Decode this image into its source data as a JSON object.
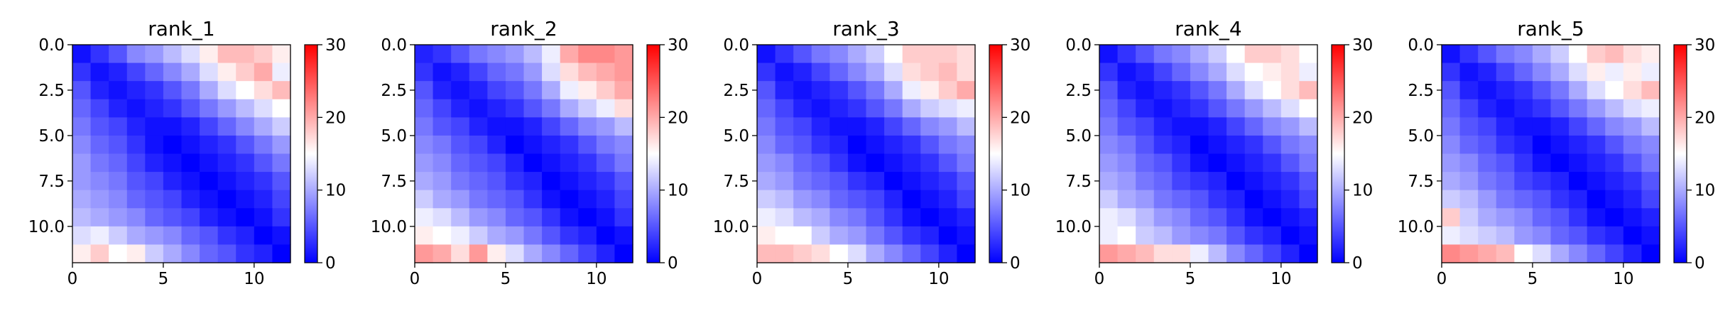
{
  "chart_data": [
    {
      "type": "heatmap",
      "title": "rank_1",
      "x_ticks": [
        "0",
        "5",
        "10"
      ],
      "y_ticks": [
        "0.0",
        "2.5",
        "5.0",
        "7.5",
        "10.0"
      ],
      "xlim": [
        0,
        12
      ],
      "ylim": [
        12,
        0
      ],
      "colorbar": {
        "colormap": "bwr",
        "range": [
          0,
          30
        ],
        "ticks": [
          "0",
          "10",
          "20",
          "30"
        ]
      },
      "values": [
        [
          1,
          3,
          5,
          8,
          9,
          11,
          13,
          16,
          19,
          19,
          18,
          16
        ],
        [
          3,
          1,
          2,
          4,
          6,
          8,
          10,
          13,
          16,
          18,
          20,
          14
        ],
        [
          5,
          2,
          1,
          2,
          3,
          5,
          7,
          10,
          13,
          15,
          17,
          19
        ],
        [
          6,
          4,
          2,
          1,
          2,
          3,
          5,
          7,
          9,
          11,
          13,
          15
        ],
        [
          7,
          5,
          4,
          2,
          1,
          1,
          2,
          4,
          6,
          8,
          10,
          12
        ],
        [
          8,
          6,
          5,
          3,
          1,
          0,
          1,
          2,
          3,
          5,
          7,
          9
        ],
        [
          9,
          7,
          6,
          4,
          2,
          1,
          0,
          1,
          2,
          3,
          5,
          7
        ],
        [
          9,
          8,
          7,
          5,
          4,
          2,
          1,
          0,
          1,
          2,
          3,
          5
        ],
        [
          10,
          9,
          8,
          6,
          5,
          4,
          2,
          1,
          0,
          1,
          2,
          4
        ],
        [
          11,
          10,
          9,
          8,
          6,
          5,
          4,
          2,
          1,
          0,
          1,
          3
        ],
        [
          13,
          14,
          12,
          10,
          9,
          8,
          6,
          5,
          3,
          2,
          0,
          1
        ],
        [
          16,
          18,
          15,
          16,
          12,
          10,
          8,
          6,
          5,
          3,
          2,
          0
        ]
      ]
    },
    {
      "type": "heatmap",
      "title": "rank_2",
      "x_ticks": [
        "0",
        "5",
        "10"
      ],
      "y_ticks": [
        "0.0",
        "2.5",
        "5.0",
        "7.5",
        "10.0"
      ],
      "xlim": [
        0,
        12
      ],
      "ylim": [
        12,
        0
      ],
      "colorbar": {
        "colormap": "bwr",
        "range": [
          0,
          30
        ],
        "ticks": [
          "0",
          "10",
          "20",
          "30"
        ]
      },
      "values": [
        [
          2,
          3,
          5,
          7,
          8,
          9,
          11,
          14,
          20,
          22,
          22,
          21
        ],
        [
          3,
          1,
          2,
          4,
          6,
          7,
          9,
          13,
          17,
          19,
          20,
          21
        ],
        [
          5,
          2,
          1,
          2,
          4,
          5,
          7,
          10,
          14,
          16,
          18,
          20
        ],
        [
          6,
          4,
          2,
          1,
          2,
          3,
          5,
          7,
          10,
          12,
          14,
          17
        ],
        [
          7,
          5,
          4,
          2,
          1,
          1,
          2,
          4,
          6,
          8,
          9,
          11
        ],
        [
          8,
          7,
          5,
          4,
          2,
          0,
          1,
          2,
          3,
          5,
          7,
          8
        ],
        [
          9,
          8,
          6,
          5,
          4,
          2,
          0,
          1,
          2,
          3,
          5,
          7
        ],
        [
          10,
          9,
          7,
          6,
          5,
          3,
          2,
          0,
          1,
          2,
          3,
          5
        ],
        [
          12,
          10,
          9,
          7,
          6,
          5,
          3,
          1,
          0,
          1,
          2,
          4
        ],
        [
          14,
          13,
          11,
          9,
          8,
          6,
          5,
          3,
          1,
          0,
          1,
          3
        ],
        [
          16,
          15,
          14,
          12,
          10,
          9,
          7,
          5,
          3,
          2,
          0,
          1
        ],
        [
          21,
          20,
          17,
          21,
          16,
          13,
          10,
          8,
          6,
          4,
          2,
          0
        ]
      ]
    },
    {
      "type": "heatmap",
      "title": "rank_3",
      "x_ticks": [
        "0",
        "5",
        "10"
      ],
      "y_ticks": [
        "0.0",
        "2.5",
        "5.0",
        "7.5",
        "10.0"
      ],
      "xlim": [
        0,
        12
      ],
      "ylim": [
        12,
        0
      ],
      "colorbar": {
        "colormap": "bwr",
        "range": [
          0,
          30
        ],
        "ticks": [
          "0",
          "10",
          "20",
          "30"
        ]
      },
      "values": [
        [
          1,
          3,
          5,
          7,
          8,
          10,
          12,
          15,
          18,
          18,
          18,
          17
        ],
        [
          3,
          1,
          2,
          4,
          6,
          8,
          10,
          13,
          17,
          18,
          19,
          17
        ],
        [
          5,
          2,
          1,
          2,
          3,
          5,
          7,
          10,
          14,
          16,
          18,
          20
        ],
        [
          6,
          4,
          2,
          1,
          2,
          3,
          5,
          7,
          10,
          12,
          13,
          14
        ],
        [
          7,
          5,
          4,
          2,
          1,
          1,
          2,
          4,
          6,
          8,
          9,
          11
        ],
        [
          8,
          6,
          5,
          3,
          2,
          0,
          1,
          2,
          3,
          5,
          7,
          8
        ],
        [
          9,
          8,
          6,
          5,
          3,
          1,
          0,
          1,
          2,
          3,
          5,
          7
        ],
        [
          10,
          9,
          7,
          6,
          5,
          3,
          2,
          0,
          1,
          2,
          3,
          5
        ],
        [
          12,
          11,
          9,
          8,
          6,
          5,
          4,
          2,
          0,
          1,
          2,
          4
        ],
        [
          14,
          13,
          11,
          10,
          8,
          7,
          5,
          3,
          1,
          0,
          1,
          2
        ],
        [
          16,
          15,
          15,
          12,
          10,
          9,
          7,
          5,
          3,
          2,
          0,
          1
        ],
        [
          19,
          19,
          18,
          17,
          15,
          13,
          10,
          8,
          6,
          4,
          2,
          0
        ]
      ]
    },
    {
      "type": "heatmap",
      "title": "rank_4",
      "x_ticks": [
        "0",
        "5",
        "10"
      ],
      "y_ticks": [
        "0.0",
        "2.5",
        "5.0",
        "7.5",
        "10.0"
      ],
      "xlim": [
        0,
        12
      ],
      "ylim": [
        12,
        0
      ],
      "colorbar": {
        "colormap": "bwr",
        "range": [
          0,
          30
        ],
        "ticks": [
          "0",
          "10",
          "20",
          "30"
        ]
      },
      "values": [
        [
          1,
          3,
          5,
          7,
          8,
          10,
          12,
          15,
          18,
          18,
          17,
          15
        ],
        [
          3,
          1,
          2,
          4,
          6,
          8,
          10,
          13,
          15,
          16,
          17,
          14
        ],
        [
          5,
          2,
          1,
          2,
          3,
          5,
          7,
          10,
          13,
          15,
          17,
          19
        ],
        [
          6,
          4,
          2,
          1,
          2,
          3,
          5,
          7,
          9,
          11,
          13,
          15
        ],
        [
          7,
          5,
          4,
          2,
          1,
          1,
          2,
          4,
          6,
          8,
          9,
          11
        ],
        [
          8,
          7,
          5,
          3,
          2,
          0,
          1,
          2,
          3,
          5,
          7,
          8
        ],
        [
          9,
          8,
          6,
          5,
          3,
          1,
          0,
          1,
          2,
          3,
          5,
          7
        ],
        [
          10,
          9,
          7,
          6,
          4,
          3,
          2,
          0,
          1,
          2,
          3,
          5
        ],
        [
          12,
          10,
          9,
          7,
          6,
          5,
          3,
          2,
          0,
          1,
          2,
          4
        ],
        [
          14,
          13,
          11,
          9,
          8,
          6,
          5,
          3,
          1,
          0,
          1,
          2
        ],
        [
          14,
          15,
          12,
          11,
          9,
          8,
          7,
          5,
          3,
          2,
          0,
          1
        ],
        [
          21,
          20,
          19,
          17,
          17,
          14,
          11,
          8,
          6,
          4,
          2,
          0
        ]
      ]
    },
    {
      "type": "heatmap",
      "title": "rank_5",
      "x_ticks": [
        "0",
        "5",
        "10"
      ],
      "y_ticks": [
        "0.0",
        "2.5",
        "5.0",
        "7.5",
        "10.0"
      ],
      "xlim": [
        0,
        12
      ],
      "ylim": [
        12,
        0
      ],
      "colorbar": {
        "colormap": "bwr",
        "range": [
          0,
          30
        ],
        "ticks": [
          "0",
          "10",
          "20",
          "30"
        ]
      },
      "values": [
        [
          1,
          3,
          5,
          7,
          8,
          10,
          12,
          15,
          18,
          19,
          17,
          16
        ],
        [
          3,
          1,
          2,
          4,
          6,
          8,
          10,
          13,
          16,
          14,
          16,
          14
        ],
        [
          5,
          2,
          1,
          2,
          3,
          5,
          7,
          10,
          13,
          15,
          17,
          19
        ],
        [
          6,
          4,
          2,
          1,
          2,
          3,
          5,
          7,
          9,
          11,
          13,
          14
        ],
        [
          7,
          5,
          4,
          2,
          1,
          1,
          2,
          4,
          6,
          8,
          9,
          11
        ],
        [
          8,
          6,
          5,
          3,
          2,
          0,
          1,
          2,
          3,
          5,
          7,
          8
        ],
        [
          9,
          8,
          6,
          5,
          3,
          1,
          0,
          1,
          2,
          3,
          5,
          7
        ],
        [
          10,
          9,
          7,
          6,
          4,
          3,
          2,
          0,
          1,
          2,
          3,
          5
        ],
        [
          12,
          11,
          9,
          7,
          6,
          5,
          3,
          2,
          0,
          1,
          2,
          4
        ],
        [
          18,
          12,
          10,
          9,
          8,
          6,
          5,
          3,
          1,
          0,
          1,
          2
        ],
        [
          14,
          13,
          12,
          11,
          9,
          8,
          6,
          5,
          3,
          2,
          0,
          1
        ],
        [
          22,
          21,
          20,
          19,
          15,
          13,
          10,
          8,
          6,
          4,
          2,
          0
        ]
      ]
    }
  ]
}
